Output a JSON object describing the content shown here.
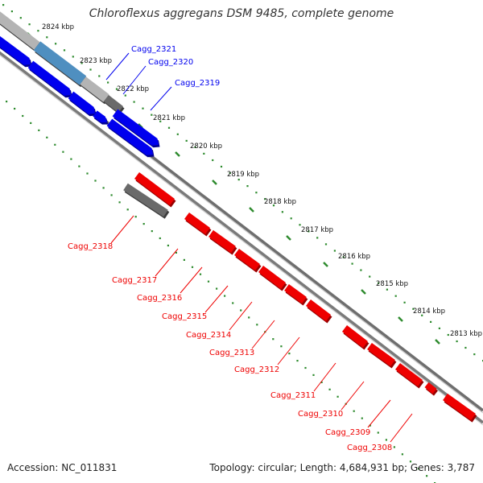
{
  "title": "Chloroflexus aggregans DSM 9485, complete genome",
  "footer": {
    "accession": "Accession: NC_011831",
    "summary": "Topology: circular; Length: 4,684,931 bp; Genes: 3,787"
  },
  "colors": {
    "forward_gene": "#0000ee",
    "reverse_gene": "#ee0000",
    "pseudo_gene": "#6a6a6a",
    "rna_gene": "#4f8fc0",
    "backbone": "#888888",
    "tick_dots": "#2e8b2e"
  },
  "ticks": [
    "2824 kbp",
    "2823 kbp",
    "2822 kbp",
    "2821 kbp",
    "2820 kbp",
    "2819 kbp",
    "2818 kbp",
    "2817 kbp",
    "2816 kbp",
    "2815 kbp",
    "2814 kbp",
    "2813 kbp"
  ],
  "forward_labels": [
    "Cagg_2321",
    "Cagg_2320",
    "Cagg_2319"
  ],
  "reverse_labels": [
    "Cagg_2318",
    "Cagg_2317",
    "Cagg_2316",
    "Cagg_2315",
    "Cagg_2314",
    "Cagg_2313",
    "Cagg_2312",
    "Cagg_2311",
    "Cagg_2310",
    "Cagg_2309",
    "Cagg_2308"
  ]
}
